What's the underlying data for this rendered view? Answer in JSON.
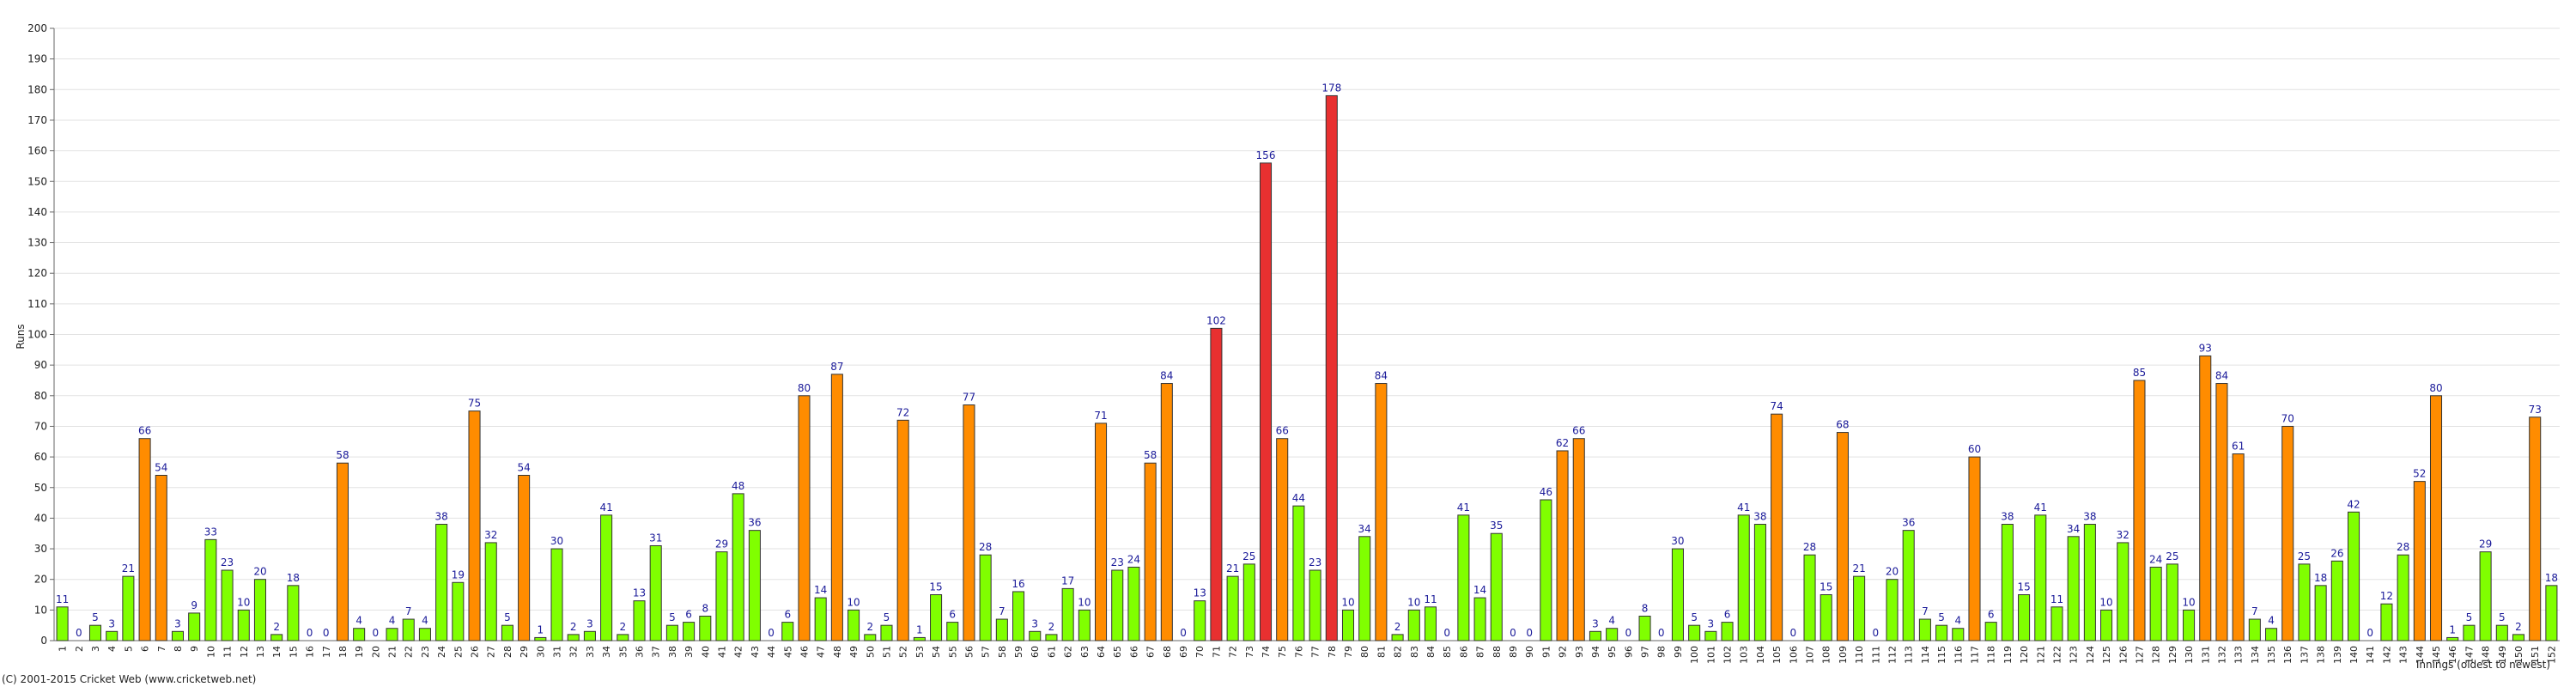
{
  "chart_data": {
    "type": "bar",
    "y_label": "Runs",
    "x_label": "Innings (oldest to newest)",
    "footer": "(C) 2001-2015 Cricket Web (www.cricketweb.net)",
    "categories": [
      "1",
      "2",
      "3",
      "4",
      "5",
      "6",
      "7",
      "8",
      "9",
      "10",
      "11",
      "12",
      "13",
      "14",
      "15",
      "16",
      "17",
      "18",
      "19",
      "20",
      "21",
      "22",
      "23",
      "24",
      "25",
      "26",
      "27",
      "28",
      "29",
      "30",
      "31",
      "32",
      "33",
      "34",
      "35",
      "36",
      "37",
      "38",
      "39",
      "40",
      "41",
      "42",
      "43",
      "44",
      "45",
      "46",
      "47",
      "48",
      "49",
      "50",
      "51",
      "52",
      "53",
      "54",
      "55",
      "56",
      "57",
      "58",
      "59",
      "60",
      "61",
      "62",
      "63",
      "64",
      "65",
      "66",
      "67",
      "68",
      "69",
      "70",
      "71",
      "72",
      "73",
      "74",
      "75",
      "76",
      "77",
      "78",
      "79",
      "80",
      "81",
      "82",
      "83",
      "84",
      "85",
      "86",
      "87",
      "88",
      "89",
      "90",
      "91",
      "92",
      "93",
      "94",
      "95",
      "96",
      "97",
      "98",
      "99",
      "100",
      "101",
      "102",
      "103",
      "104",
      "105",
      "106",
      "107",
      "108",
      "109",
      "110",
      "111",
      "112",
      "113",
      "114",
      "115",
      "116",
      "117",
      "118",
      "119",
      "120",
      "121",
      "122",
      "123",
      "124",
      "125",
      "126",
      "127",
      "128",
      "129",
      "130",
      "131",
      "132",
      "133",
      "134",
      "135",
      "136",
      "137",
      "138",
      "139",
      "140",
      "141",
      "142",
      "143",
      "144",
      "145",
      "146",
      "147",
      "148",
      "149",
      "150",
      "151",
      "152"
    ],
    "values": [
      11,
      0,
      5,
      3,
      21,
      66,
      54,
      3,
      9,
      33,
      23,
      10,
      20,
      2,
      18,
      0,
      0,
      58,
      4,
      0,
      4,
      7,
      4,
      38,
      19,
      75,
      32,
      5,
      54,
      1,
      30,
      2,
      3,
      41,
      2,
      13,
      31,
      5,
      6,
      8,
      29,
      48,
      36,
      0,
      6,
      80,
      14,
      87,
      10,
      2,
      5,
      72,
      1,
      15,
      6,
      77,
      28,
      7,
      16,
      3,
      2,
      17,
      10,
      71,
      23,
      24,
      58,
      84,
      0,
      13,
      102,
      21,
      25,
      156,
      66,
      44,
      23,
      178,
      10,
      34,
      84,
      2,
      10,
      11,
      0,
      41,
      14,
      35,
      0,
      0,
      46,
      62,
      66,
      3,
      4,
      0,
      8,
      0,
      30,
      5,
      3,
      6,
      41,
      38,
      74,
      0,
      28,
      15,
      68,
      21,
      0,
      20,
      36,
      7,
      5,
      4,
      60,
      6,
      38,
      15,
      41,
      11,
      34,
      38,
      10,
      32,
      85,
      24,
      25,
      10,
      93,
      84,
      61,
      7,
      4,
      70,
      25,
      18,
      26,
      42,
      0,
      12,
      28,
      52,
      80,
      1,
      5,
      29,
      5,
      2,
      73,
      18
    ],
    "colors": [
      "#80ff00",
      "#80ff00",
      "#80ff00",
      "#80ff00",
      "#80ff00",
      "#ff8c00",
      "#ff8c00",
      "#80ff00",
      "#80ff00",
      "#80ff00",
      "#80ff00",
      "#80ff00",
      "#80ff00",
      "#80ff00",
      "#80ff00",
      "#80ff00",
      "#80ff00",
      "#ff8c00",
      "#80ff00",
      "#80ff00",
      "#80ff00",
      "#80ff00",
      "#80ff00",
      "#80ff00",
      "#80ff00",
      "#ff8c00",
      "#80ff00",
      "#80ff00",
      "#ff8c00",
      "#80ff00",
      "#80ff00",
      "#80ff00",
      "#80ff00",
      "#80ff00",
      "#80ff00",
      "#80ff00",
      "#80ff00",
      "#80ff00",
      "#80ff00",
      "#80ff00",
      "#80ff00",
      "#80ff00",
      "#80ff00",
      "#80ff00",
      "#80ff00",
      "#ff8c00",
      "#80ff00",
      "#ff8c00",
      "#80ff00",
      "#80ff00",
      "#80ff00",
      "#ff8c00",
      "#80ff00",
      "#80ff00",
      "#80ff00",
      "#ff8c00",
      "#80ff00",
      "#80ff00",
      "#80ff00",
      "#80ff00",
      "#80ff00",
      "#80ff00",
      "#80ff00",
      "#ff8c00",
      "#80ff00",
      "#80ff00",
      "#ff8c00",
      "#ff8c00",
      "#80ff00",
      "#80ff00",
      "#e83030",
      "#80ff00",
      "#80ff00",
      "#e83030",
      "#ff8c00",
      "#80ff00",
      "#80ff00",
      "#e83030",
      "#80ff00",
      "#80ff00",
      "#ff8c00",
      "#80ff00",
      "#80ff00",
      "#80ff00",
      "#80ff00",
      "#80ff00",
      "#80ff00",
      "#80ff00",
      "#80ff00",
      "#80ff00",
      "#80ff00",
      "#ff8c00",
      "#ff8c00",
      "#80ff00",
      "#80ff00",
      "#80ff00",
      "#80ff00",
      "#80ff00",
      "#80ff00",
      "#80ff00",
      "#80ff00",
      "#80ff00",
      "#80ff00",
      "#80ff00",
      "#ff8c00",
      "#80ff00",
      "#80ff00",
      "#80ff00",
      "#ff8c00",
      "#80ff00",
      "#80ff00",
      "#80ff00",
      "#80ff00",
      "#80ff00",
      "#80ff00",
      "#80ff00",
      "#ff8c00",
      "#80ff00",
      "#80ff00",
      "#80ff00",
      "#80ff00",
      "#80ff00",
      "#80ff00",
      "#80ff00",
      "#80ff00",
      "#80ff00",
      "#ff8c00",
      "#80ff00",
      "#80ff00",
      "#80ff00",
      "#ff8c00",
      "#ff8c00",
      "#ff8c00",
      "#80ff00",
      "#80ff00",
      "#ff8c00",
      "#80ff00",
      "#80ff00",
      "#80ff00",
      "#80ff00",
      "#80ff00",
      "#80ff00",
      "#80ff00",
      "#ff8c00",
      "#ff8c00",
      "#80ff00",
      "#80ff00",
      "#80ff00",
      "#80ff00",
      "#80ff00",
      "#ff8c00",
      "#80ff00"
    ],
    "ylim": [
      0,
      200
    ],
    "yticks": [
      0,
      10,
      20,
      30,
      40,
      50,
      60,
      70,
      80,
      90,
      100,
      110,
      120,
      130,
      140,
      150,
      160,
      170,
      180,
      190,
      200
    ],
    "grid": true
  }
}
